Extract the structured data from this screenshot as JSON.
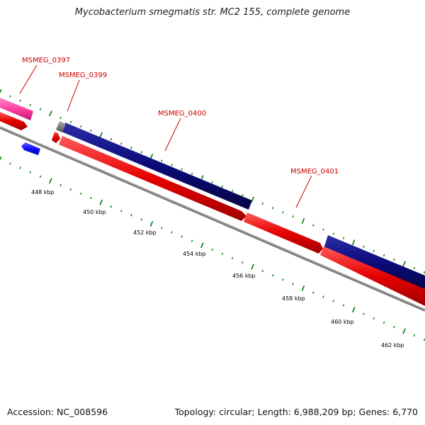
{
  "title": "Mycobacterium smegmatis str. MC2 155, complete genome",
  "footer": {
    "accession": "Accession: NC_008596",
    "summary": "Topology: circular; Length: 6,988,209 bp; Genes: 6,770"
  },
  "gene_labels": [
    "MSMEG_0397",
    "MSMEG_0399",
    "MSMEG_0400",
    "MSMEG_0401"
  ],
  "kbp_labels": [
    "448 kbp",
    "450 kbp",
    "452 kbp",
    "454 kbp",
    "456 kbp",
    "458 kbp",
    "460 kbp",
    "462 kbp"
  ],
  "colors": {
    "label": "#cc0000",
    "cds_forward": "#e60000",
    "gene_navy": "#0a0a78",
    "gene_pink": "#ff3fa0",
    "gene_blue": "#1010ff",
    "gene_gray": "#777777",
    "backbone": "#808080",
    "tick": "#007a00"
  }
}
